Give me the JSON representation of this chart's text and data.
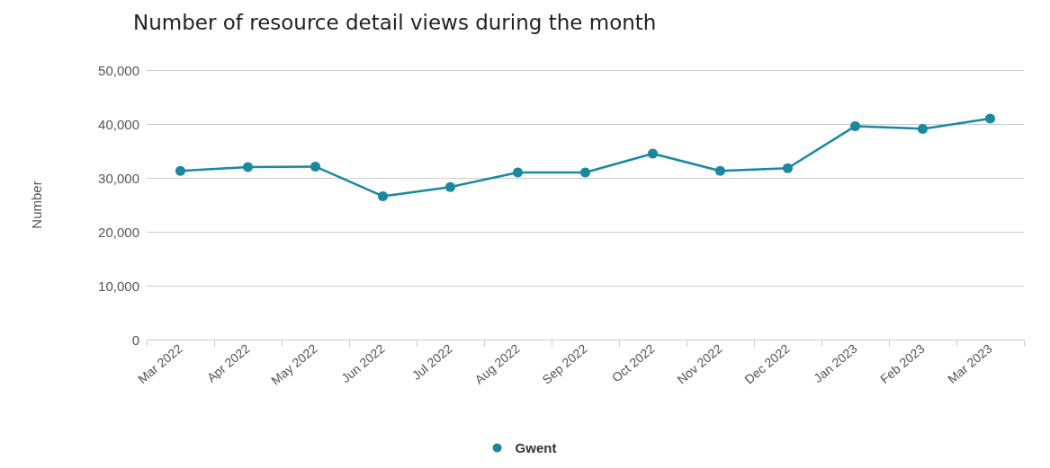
{
  "chart_data": {
    "type": "line",
    "title": "Number of resource detail views during the month",
    "ylabel": "Number",
    "categories": [
      "Mar 2022",
      "Apr 2022",
      "May 2022",
      "Jun 2022",
      "Jul 2022",
      "Aug 2022",
      "Sep 2022",
      "Oct 2022",
      "Nov 2022",
      "Dec 2022",
      "Jan 2023",
      "Feb 2023",
      "Mar 2023"
    ],
    "series": [
      {
        "name": "Gwent",
        "color": "#18899f",
        "values": [
          31300,
          32000,
          32100,
          26600,
          28300,
          31000,
          31000,
          34500,
          31300,
          31800,
          39600,
          39100,
          41000
        ]
      }
    ],
    "ylim": [
      0,
      50000
    ],
    "yticks": [
      0,
      {
        "value": 10000,
        "label": "10,000"
      },
      {
        "value": 20000,
        "label": "20,000"
      },
      {
        "value": 30000,
        "label": "30,000"
      },
      {
        "value": 40000,
        "label": "40,000"
      },
      {
        "value": 50000,
        "label": "50,000"
      }
    ],
    "grid": "y",
    "legend": "bottom",
    "marker": "circle",
    "line_style": "solid"
  }
}
